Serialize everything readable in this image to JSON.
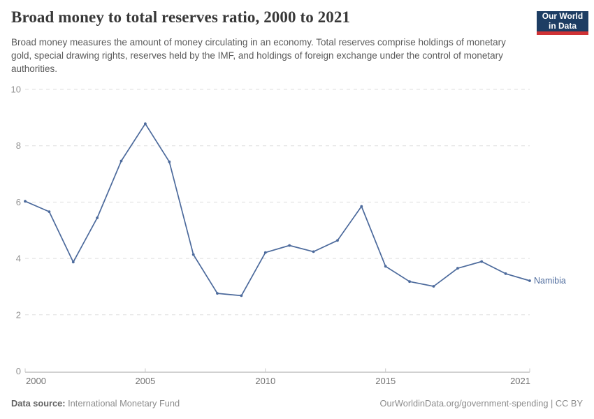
{
  "header": {
    "title": "Broad money to total reserves ratio, 2000 to 2021",
    "subtitle": "Broad money measures the amount of money circulating in an economy. Total reserves comprise holdings of monetary gold, special drawing rights, reserves held by the IMF, and holdings of foreign exchange under the control of monetary authorities.",
    "logo": {
      "line1": "Our World",
      "line2": "in Data",
      "bg_color": "#1d3d63",
      "accent_color": "#cf3235"
    }
  },
  "chart_data": {
    "type": "line",
    "title": "Broad money to total reserves ratio, 2000 to 2021",
    "xlabel": "",
    "ylabel": "",
    "xlim": [
      2000,
      2021
    ],
    "ylim": [
      0,
      10
    ],
    "x_ticks": [
      2000,
      2005,
      2010,
      2015,
      2021
    ],
    "y_ticks": [
      0,
      2,
      4,
      6,
      8,
      10
    ],
    "grid": "horizontal-dashed",
    "legend_position": "end-of-line",
    "series": [
      {
        "name": "Namibia",
        "color": "#4C6A9C",
        "x": [
          2000,
          2001,
          2002,
          2003,
          2004,
          2005,
          2006,
          2007,
          2008,
          2009,
          2010,
          2011,
          2012,
          2013,
          2014,
          2015,
          2016,
          2017,
          2018,
          2019,
          2020,
          2021
        ],
        "values": [
          6.03,
          5.66,
          3.87,
          5.44,
          7.46,
          8.78,
          7.43,
          4.14,
          2.76,
          2.68,
          4.21,
          4.46,
          4.24,
          4.64,
          5.85,
          3.72,
          3.18,
          3.01,
          3.65,
          3.89,
          3.46,
          3.21
        ]
      }
    ]
  },
  "footer": {
    "source_label": "Data source:",
    "source_value": "International Monetary Fund",
    "credit": "OurWorldinData.org/government-spending | CC BY"
  }
}
